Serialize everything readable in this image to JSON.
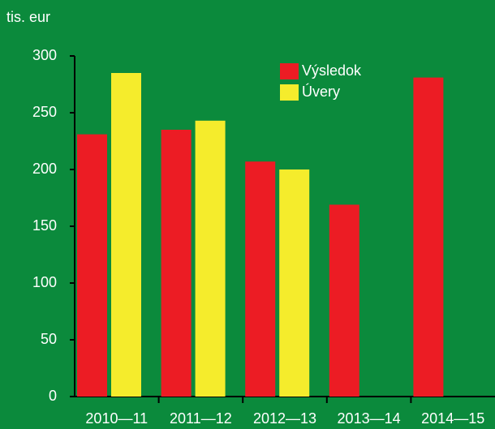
{
  "chart_data": {
    "type": "bar",
    "y_label": "tis. eur",
    "categories": [
      "2010—11",
      "2011—12",
      "2012—13",
      "2013—14",
      "2014—15"
    ],
    "series": [
      {
        "name": "Výsledok",
        "color": "#ec1c24",
        "values": [
          231,
          235,
          207,
          169,
          281
        ]
      },
      {
        "name": "Úvery",
        "color": "#f5ec2c",
        "values": [
          285,
          243,
          200,
          null,
          null
        ]
      }
    ],
    "ylim": [
      0,
      300
    ],
    "yticks": [
      0,
      50,
      100,
      150,
      200,
      250,
      300
    ],
    "legend": "top-right"
  }
}
